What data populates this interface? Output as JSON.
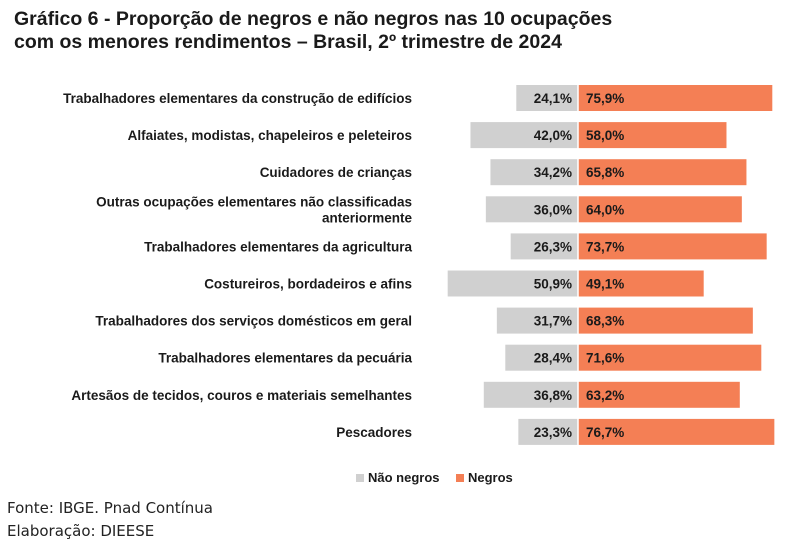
{
  "title": {
    "line1": "Gráfico 6 - Proporção de negros e não negros nas 10 ocupações",
    "line2": "com os menores rendimentos – Brasil, 2º trimestre de 2024"
  },
  "chart_data": {
    "type": "bar",
    "orientation": "horizontal-diverging",
    "categories": [
      [
        "Trabalhadores elementares da construção de edifícios"
      ],
      [
        "Alfaiates, modistas, chapeleiros e peleteiros"
      ],
      [
        "Cuidadores de crianças"
      ],
      [
        "Outras ocupações elementares não classificadas",
        "anteriormente"
      ],
      [
        "Trabalhadores elementares da agricultura"
      ],
      [
        "Costureiros, bordadeiros e afins"
      ],
      [
        "Trabalhadores dos serviços domésticos em geral"
      ],
      [
        "Trabalhadores elementares da pecuária"
      ],
      [
        "Artesãos de tecidos, couros e materiais semelhantes"
      ],
      [
        "Pescadores"
      ]
    ],
    "series": [
      {
        "name": "Não negros",
        "color": "#d0d0d0",
        "values": [
          24.1,
          42.0,
          34.2,
          36.0,
          26.3,
          50.9,
          31.7,
          28.4,
          36.8,
          23.3
        ],
        "labels": [
          "24,1%",
          "42,0%",
          "34,2%",
          "36,0%",
          "26,3%",
          "50,9%",
          "31,7%",
          "28,4%",
          "36,8%",
          "23,3%"
        ]
      },
      {
        "name": "Negros",
        "color": "#f47f55",
        "values": [
          75.9,
          58.0,
          65.8,
          64.0,
          73.7,
          49.1,
          68.3,
          71.6,
          63.2,
          76.7
        ],
        "labels": [
          "75,9%",
          "58,0%",
          "65,8%",
          "64,0%",
          "73,7%",
          "49,1%",
          "68,3%",
          "71,6%",
          "63,2%",
          "76,7%"
        ]
      }
    ],
    "legend_position": "bottom",
    "grid": false
  },
  "footer": {
    "source": "Fonte: IBGE. Pnad Contínua",
    "credit": "Elaboração: DIEESE"
  }
}
